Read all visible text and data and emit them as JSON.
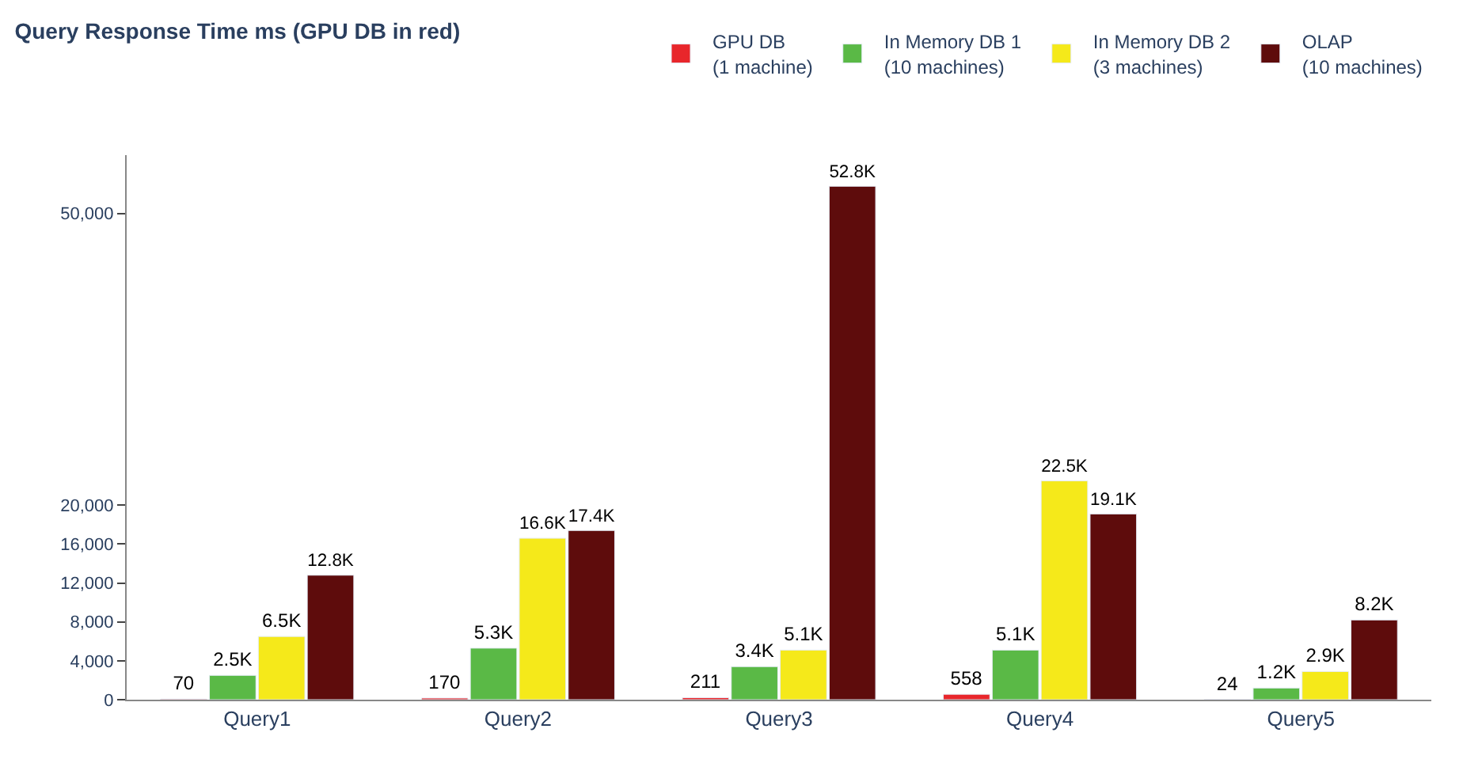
{
  "chart_data": {
    "type": "bar",
    "title": "Query Response Time ms (GPU DB in red)",
    "categories": [
      "Query1",
      "Query2",
      "Query3",
      "Query4",
      "Query5"
    ],
    "series": [
      {
        "name": "GPU DB\n(1 machine)",
        "color": "#e8262b",
        "values": [
          70,
          170,
          211,
          558,
          24
        ],
        "value_labels": [
          "70",
          "170",
          "211",
          "558",
          "24"
        ]
      },
      {
        "name": "In Memory DB 1\n(10 machines)",
        "color": "#5ab946",
        "values": [
          2500,
          5300,
          3400,
          5100,
          1200
        ],
        "value_labels": [
          "2.5K",
          "5.3K",
          "3.4K",
          "5.1K",
          "1.2K"
        ]
      },
      {
        "name": "In Memory DB 2\n(3 machines)",
        "color": "#f5e91a",
        "values": [
          6500,
          16600,
          5100,
          22500,
          2900
        ],
        "value_labels": [
          "6.5K",
          "16.6K",
          "5.1K",
          "22.5K",
          "2.9K"
        ]
      },
      {
        "name": "OLAP\n(10 machines)",
        "color": "#5e0c0c",
        "values": [
          12800,
          17400,
          52800,
          19100,
          8200
        ],
        "value_labels": [
          "12.8K",
          "17.4K",
          "52.8K",
          "19.1K",
          "8.2K"
        ]
      }
    ],
    "ylim": [
      0,
      56000
    ],
    "yticks": [
      0,
      {
        "value": 4000,
        "label": "4,000"
      },
      {
        "value": 8000,
        "label": "8,000"
      },
      {
        "value": 12000,
        "label": "12,000"
      },
      {
        "value": 16000,
        "label": "16,000"
      },
      {
        "value": 20000,
        "label": "20,000"
      },
      {
        "value": 50000,
        "label": "50,000"
      }
    ],
    "legend": "top right"
  }
}
